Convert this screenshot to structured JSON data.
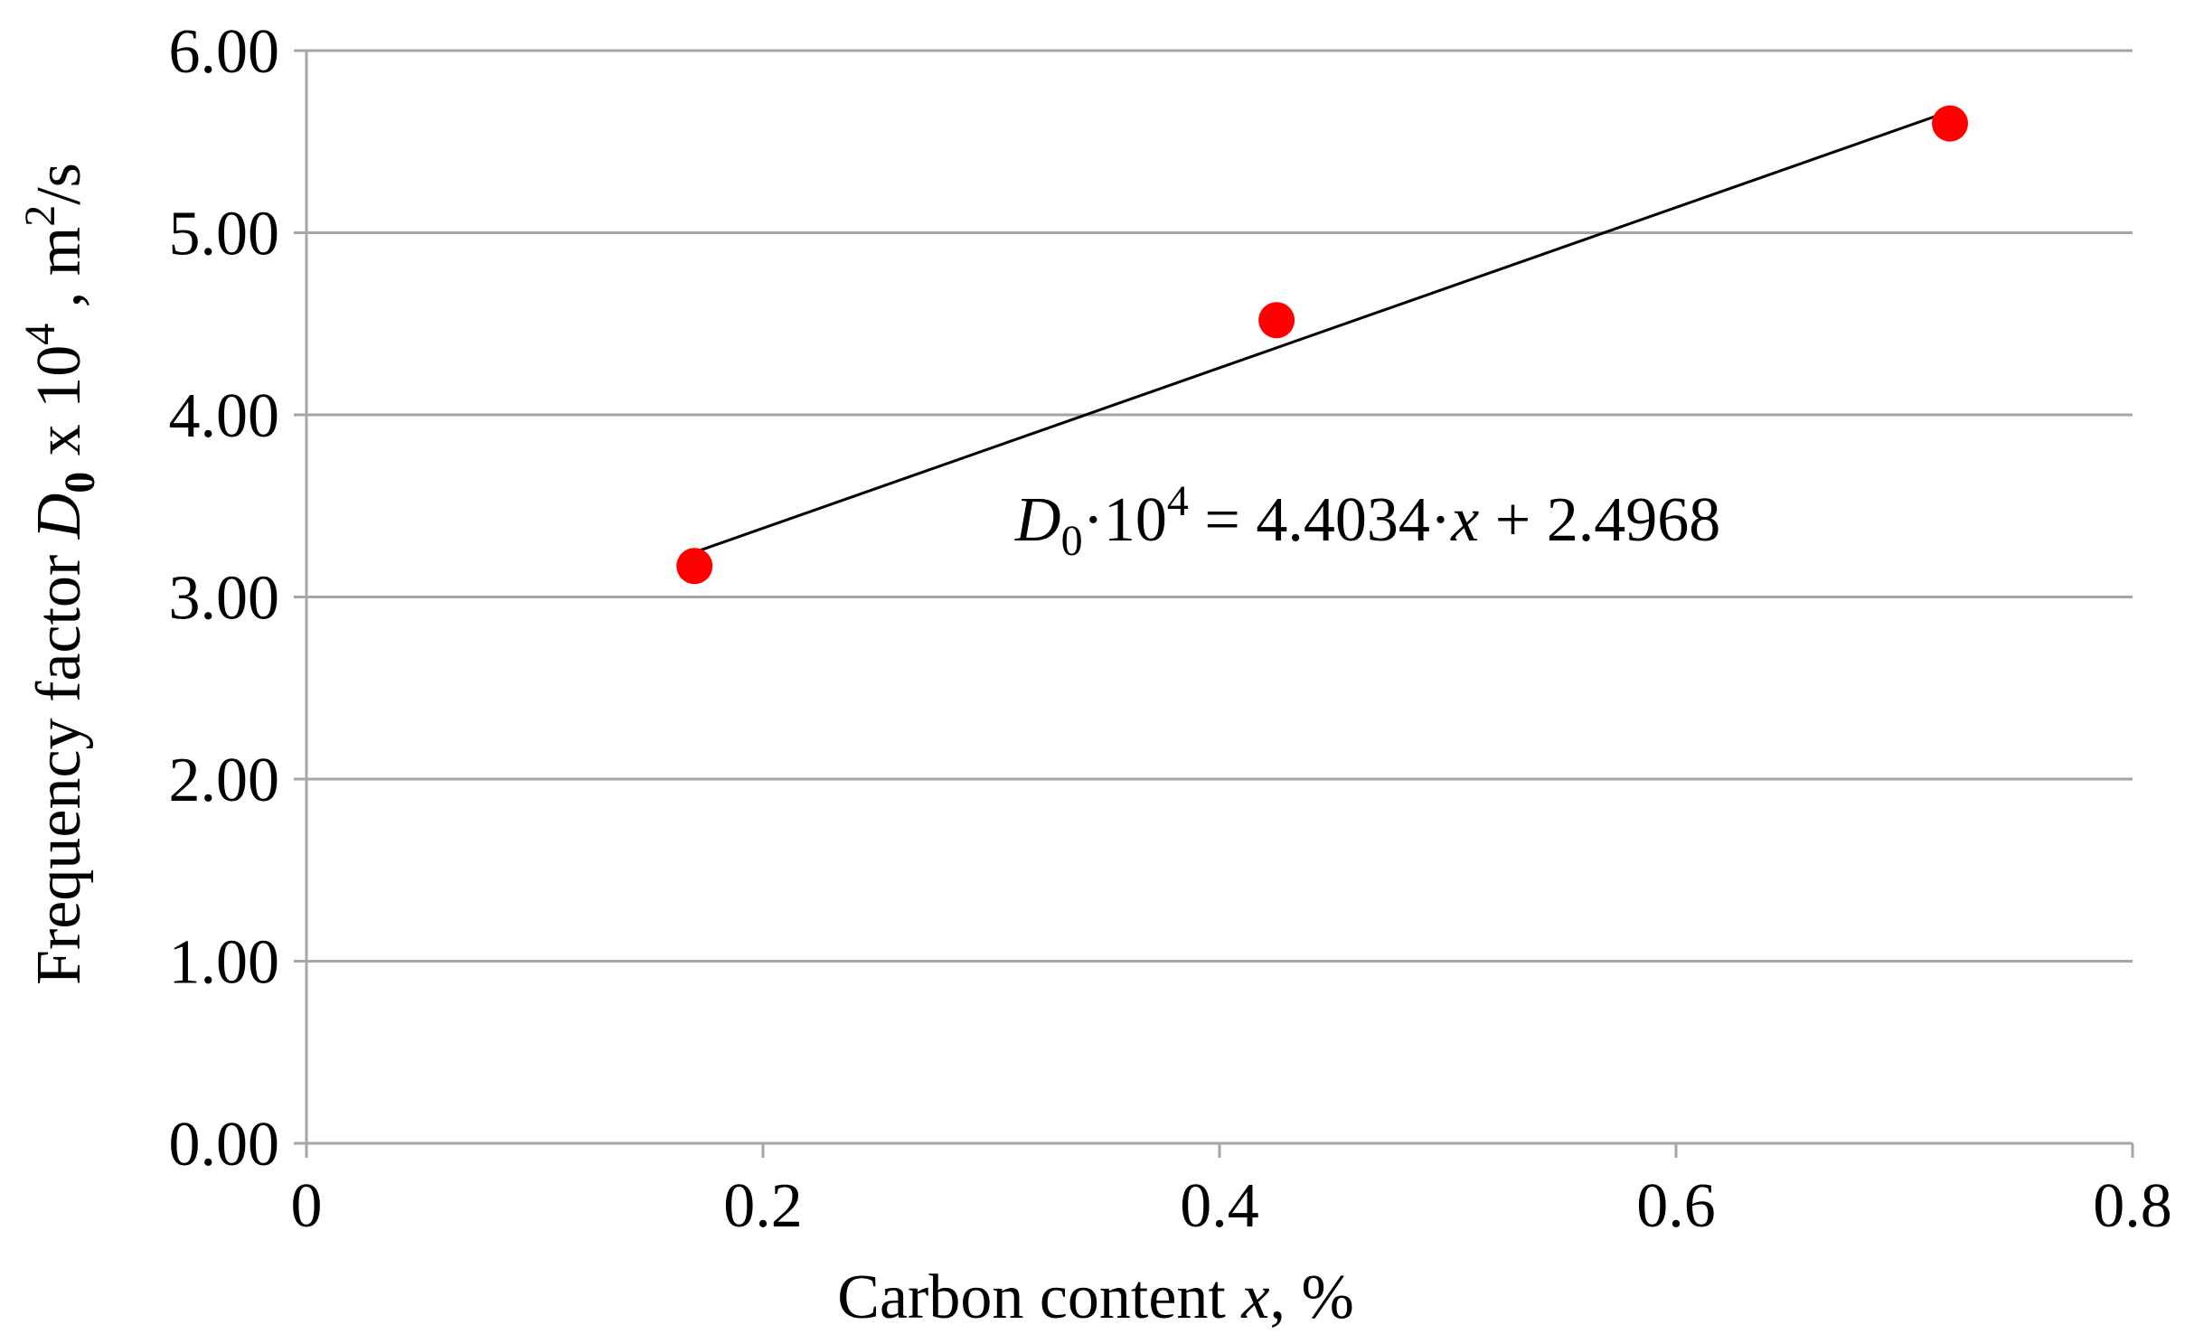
{
  "chart_data": {
    "type": "scatter",
    "title": "",
    "xlabel_parts": {
      "prefix": "Carbon content ",
      "variable": "x",
      "suffix": ", %"
    },
    "ylabel_parts": {
      "prefix": "Frequency factor ",
      "symbol": "D",
      "symbol_sub": "0",
      "mid": " x 10",
      "exp": "4",
      "unit": " , m",
      "unit_exp": "2",
      "unit_tail": "/s"
    },
    "xlim": [
      0,
      0.8
    ],
    "ylim": [
      0,
      6
    ],
    "x_ticks": [
      "0",
      "0.2",
      "0.4",
      "0.6",
      "0.8"
    ],
    "y_ticks": [
      "0.00",
      "1.00",
      "2.00",
      "3.00",
      "4.00",
      "5.00",
      "6.00"
    ],
    "grid": "horizontal",
    "legend": "none",
    "series": [
      {
        "points": [
          {
            "x": 0.17,
            "y": 3.17
          },
          {
            "x": 0.425,
            "y": 4.52
          },
          {
            "x": 0.72,
            "y": 5.6
          }
        ]
      }
    ],
    "trendline": {
      "slope": 4.4034,
      "intercept": 2.4968,
      "x_range": [
        0.17,
        0.72
      ]
    },
    "equation_parts": {
      "symbol": "D",
      "symbol_sub": "0",
      "mid": "·10",
      "exp": "4",
      "rhs1": " = 4.4034·",
      "var": "x",
      "rhs2": " + 2.4968"
    },
    "colors": {
      "marker": "#ff0000",
      "trendline": "#000000",
      "grid": "#a6a6a6",
      "axis": "#a6a6a6"
    }
  }
}
